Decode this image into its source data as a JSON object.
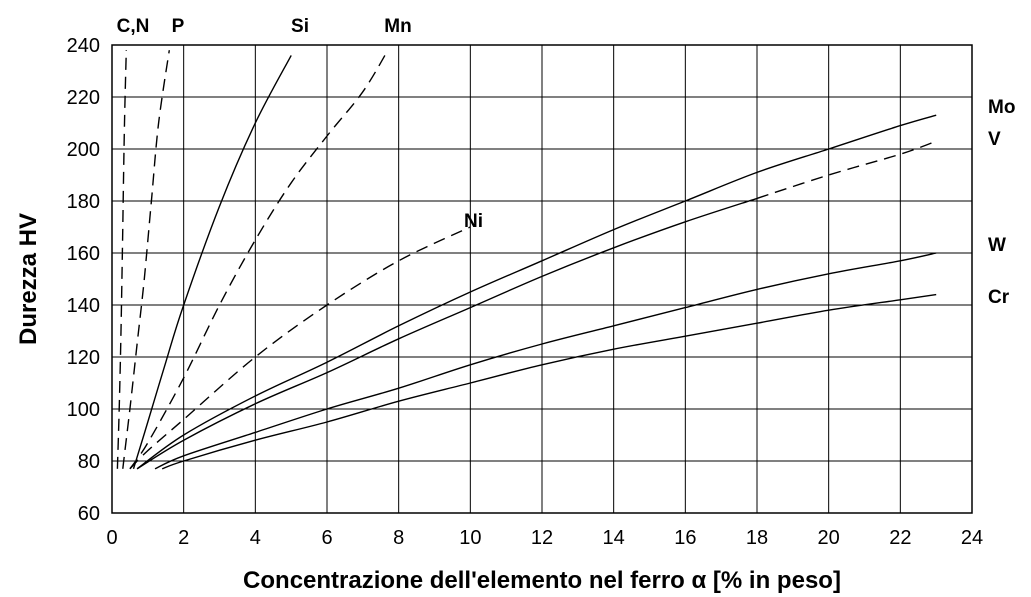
{
  "chart_data": {
    "type": "line",
    "title": "",
    "xlabel": "Concentrazione dell'elemento nel ferro α [% in peso]",
    "ylabel": "Durezza HV",
    "xlim": [
      0,
      24
    ],
    "ylim": [
      60,
      240
    ],
    "x_ticks": [
      0,
      2,
      4,
      6,
      8,
      10,
      12,
      14,
      16,
      18,
      20,
      22,
      24
    ],
    "y_ticks": [
      60,
      80,
      100,
      120,
      140,
      160,
      180,
      200,
      220,
      240
    ],
    "grid": true,
    "legend": "none (series labelled directly)",
    "series": [
      {
        "name": "C,N",
        "style": "dashed",
        "points": [
          [
            0.15,
            77
          ],
          [
            0.2,
            100
          ],
          [
            0.25,
            130
          ],
          [
            0.3,
            170
          ],
          [
            0.35,
            210
          ],
          [
            0.4,
            238
          ]
        ]
      },
      {
        "name": "P",
        "style": "dashed",
        "points": [
          [
            0.3,
            77
          ],
          [
            0.5,
            100
          ],
          [
            0.7,
            125
          ],
          [
            0.9,
            150
          ],
          [
            1.1,
            180
          ],
          [
            1.3,
            210
          ],
          [
            1.6,
            238
          ]
        ]
      },
      {
        "name": "Si",
        "style": "solid",
        "points": [
          [
            0.6,
            77
          ],
          [
            1.0,
            95
          ],
          [
            1.5,
            118
          ],
          [
            2.0,
            140
          ],
          [
            3.0,
            178
          ],
          [
            4.0,
            210
          ],
          [
            5.0,
            236
          ]
        ]
      },
      {
        "name": "Mn",
        "style": "dashed",
        "points": [
          [
            0.5,
            77
          ],
          [
            1.0,
            87
          ],
          [
            2.0,
            112
          ],
          [
            3.0,
            140
          ],
          [
            4.0,
            165
          ],
          [
            5.0,
            187
          ],
          [
            6.0,
            205
          ],
          [
            7.0,
            222
          ],
          [
            7.7,
            238
          ]
        ]
      },
      {
        "name": "Ni",
        "style": "dashed",
        "points": [
          [
            0.5,
            77
          ],
          [
            1.0,
            84
          ],
          [
            2.0,
            96
          ],
          [
            4.0,
            120
          ],
          [
            6.0,
            140
          ],
          [
            8.0,
            157
          ],
          [
            10.0,
            170
          ]
        ]
      },
      {
        "name": "Mo",
        "style": "solid",
        "points": [
          [
            0.7,
            77
          ],
          [
            2.0,
            90
          ],
          [
            4.0,
            105
          ],
          [
            6.0,
            118
          ],
          [
            8.0,
            132
          ],
          [
            10.0,
            145
          ],
          [
            12.0,
            157
          ],
          [
            14.0,
            169
          ],
          [
            16.0,
            180
          ],
          [
            18.0,
            191
          ],
          [
            20.0,
            200
          ],
          [
            22.0,
            209
          ],
          [
            23.0,
            213
          ]
        ]
      },
      {
        "name": "V",
        "style": "mixed",
        "points": [
          [
            0.7,
            77
          ],
          [
            2.0,
            88
          ],
          [
            4.0,
            102
          ],
          [
            6.0,
            114
          ],
          [
            8.0,
            127
          ],
          [
            10.0,
            139
          ],
          [
            12.0,
            151
          ],
          [
            14.0,
            162
          ],
          [
            16.0,
            172
          ],
          [
            18.0,
            181
          ],
          [
            20.0,
            190
          ],
          [
            22.0,
            198
          ],
          [
            23.0,
            203
          ]
        ]
      },
      {
        "name": "W",
        "style": "solid",
        "points": [
          [
            1.2,
            77
          ],
          [
            2.0,
            82
          ],
          [
            4.0,
            91
          ],
          [
            6.0,
            100
          ],
          [
            8.0,
            108
          ],
          [
            10.0,
            117
          ],
          [
            12.0,
            125
          ],
          [
            14.0,
            132
          ],
          [
            16.0,
            139
          ],
          [
            18.0,
            146
          ],
          [
            20.0,
            152
          ],
          [
            22.0,
            157
          ],
          [
            23.0,
            160
          ]
        ]
      },
      {
        "name": "Cr",
        "style": "solid",
        "points": [
          [
            1.4,
            77
          ],
          [
            2.0,
            80
          ],
          [
            4.0,
            88
          ],
          [
            6.0,
            95
          ],
          [
            8.0,
            103
          ],
          [
            10.0,
            110
          ],
          [
            12.0,
            117
          ],
          [
            14.0,
            123
          ],
          [
            16.0,
            128
          ],
          [
            18.0,
            133
          ],
          [
            20.0,
            138
          ],
          [
            22.0,
            142
          ],
          [
            23.0,
            144
          ]
        ]
      }
    ]
  }
}
